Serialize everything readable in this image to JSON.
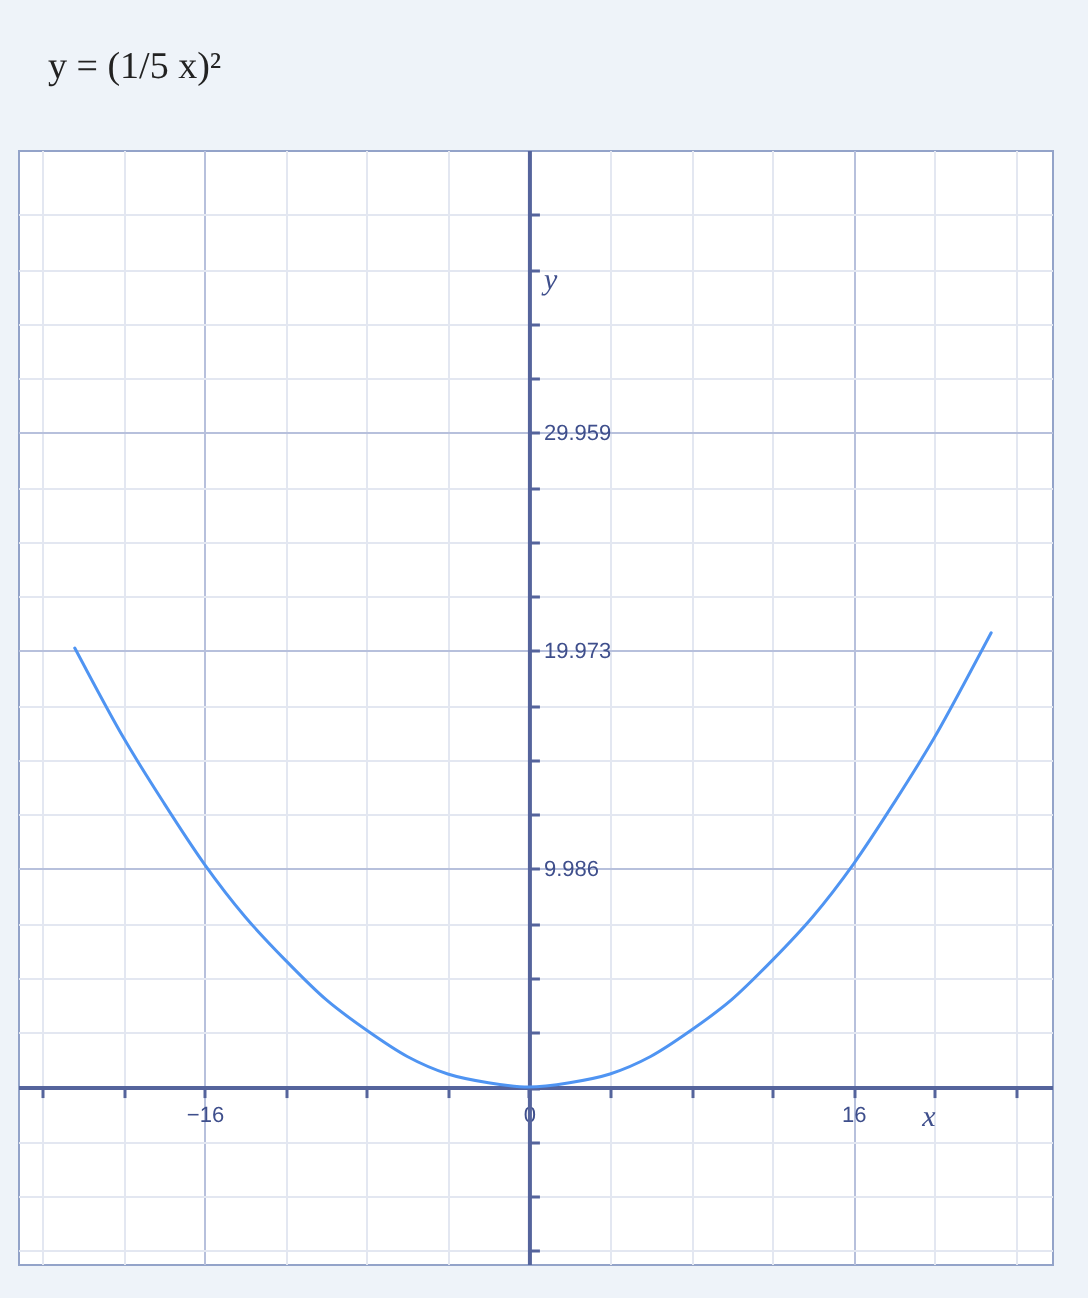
{
  "chart_data": {
    "type": "line",
    "title": "y = (1/5 x)²",
    "xlabel": "x",
    "ylabel": "y",
    "x": [
      -22.4,
      -22,
      -20,
      -18,
      -16,
      -14,
      -12,
      -10,
      -8,
      -6,
      -4,
      -2,
      0,
      2,
      4,
      6,
      8,
      10,
      12,
      14,
      16,
      18,
      20,
      22,
      22.8
    ],
    "series": [
      {
        "color": "#4f94f2",
        "values": [
          20.1,
          19.4,
          16,
          13,
          10.2,
          7.8,
          5.8,
          4,
          2.6,
          1.4,
          0.6,
          0.2,
          0,
          0.2,
          0.6,
          1.4,
          2.6,
          4,
          5.8,
          7.8,
          10.2,
          13,
          16,
          19.4,
          20.8
        ]
      }
    ],
    "xlim": [
      -25.2,
      25.8
    ],
    "ylim": [
      -8.1,
      42.9
    ],
    "xticks": [
      {
        "value": -24,
        "label": null
      },
      {
        "value": -20,
        "label": null
      },
      {
        "value": -16,
        "label": "−16"
      },
      {
        "value": -12,
        "label": null
      },
      {
        "value": -8,
        "label": null
      },
      {
        "value": -4,
        "label": null
      },
      0,
      {
        "value": 4,
        "label": null
      },
      {
        "value": 8,
        "label": null
      },
      {
        "value": 12,
        "label": null
      },
      16,
      {
        "value": 20,
        "label": null
      },
      {
        "value": 24,
        "label": null
      }
    ],
    "yticks": [
      {
        "value": -7.49,
        "label": null
      },
      {
        "value": -4.993,
        "label": null
      },
      {
        "value": -2.497,
        "label": null
      },
      {
        "value": 0,
        "label": null
      },
      {
        "value": 2.497,
        "label": null
      },
      {
        "value": 4.993,
        "label": null
      },
      {
        "value": 7.49,
        "label": null
      },
      9.986,
      {
        "value": 12.483,
        "label": null
      },
      {
        "value": 14.98,
        "label": null
      },
      {
        "value": 17.476,
        "label": null
      },
      19.973,
      {
        "value": 22.47,
        "label": null
      },
      {
        "value": 24.966,
        "label": null
      },
      {
        "value": 27.463,
        "label": null
      },
      29.959,
      {
        "value": 32.456,
        "label": null
      },
      {
        "value": 34.952,
        "label": null
      },
      {
        "value": 37.449,
        "label": null
      },
      {
        "value": 39.945,
        "label": null
      }
    ],
    "grid": true
  }
}
